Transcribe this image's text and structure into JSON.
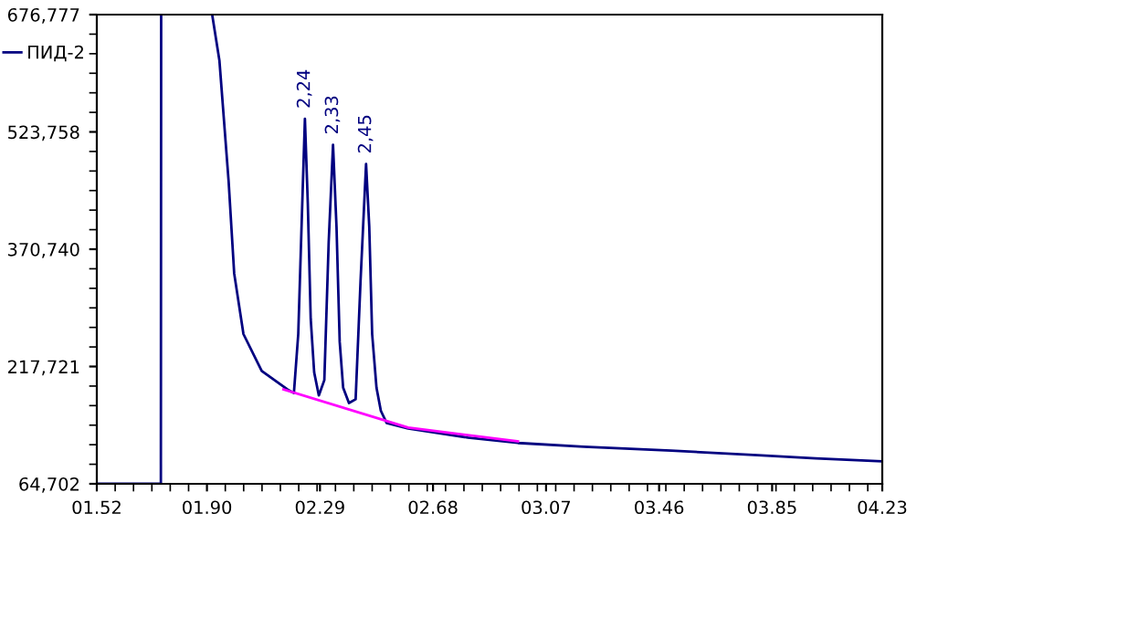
{
  "chart_data": {
    "type": "line",
    "series": [
      {
        "name": "ПИД-2",
        "color": "#000080",
        "x": [
          1.52,
          1.741,
          1.742,
          1.83,
          1.918,
          1.943,
          1.975,
          1.994,
          2.026,
          2.089,
          2.177,
          2.2,
          2.215,
          2.228,
          2.238,
          2.248,
          2.258,
          2.27,
          2.286,
          2.305,
          2.32,
          2.335,
          2.347,
          2.358,
          2.37,
          2.39,
          2.413,
          2.43,
          2.449,
          2.46,
          2.47,
          2.485,
          2.5,
          2.52,
          2.594,
          2.8,
          2.973,
          3.2,
          3.502,
          3.8,
          4.0,
          4.23
        ],
        "values": [
          64702,
          64702,
          676777,
          null,
          676777,
          617000,
          458000,
          339000,
          260000,
          212000,
          188000,
          183000,
          260000,
          420000,
          541000,
          430000,
          280000,
          210000,
          180000,
          200000,
          380000,
          507000,
          400000,
          250000,
          190000,
          170000,
          175000,
          330000,
          482000,
          400000,
          260000,
          190000,
          160000,
          144000,
          137000,
          125000,
          118000,
          113000,
          108000,
          102000,
          98000,
          94000
        ]
      },
      {
        "color": "#ff00ff",
        "x": [
          2.164,
          2.594,
          2.973
        ],
        "values": [
          188000,
          138000,
          120000
        ]
      }
    ],
    "xlim": [
      1.52,
      4.23
    ],
    "xticks": [
      {
        "value": 1.52,
        "label": "01.52"
      },
      {
        "value": 1.9,
        "label": "01.90"
      },
      {
        "value": 2.29,
        "label": "02.29"
      },
      {
        "value": 2.68,
        "label": "02.68"
      },
      {
        "value": 3.07,
        "label": "03.07"
      },
      {
        "value": 3.46,
        "label": "03.46"
      },
      {
        "value": 3.85,
        "label": "03.85"
      },
      {
        "value": 4.23,
        "label": "04.23"
      }
    ],
    "ylim": [
      64702,
      676777
    ],
    "yticks": [
      {
        "value": 64702,
        "label": "64,702"
      },
      {
        "value": 217721,
        "label": "217,721"
      },
      {
        "value": 370740,
        "label": "370,740"
      },
      {
        "value": 523758,
        "label": "523,758"
      },
      {
        "value": 676777,
        "label": "676,777"
      }
    ],
    "annotations": [
      {
        "text": "2,24",
        "x": 2.238,
        "y": 541000
      },
      {
        "text": "2,33",
        "x": 2.335,
        "y": 507000
      },
      {
        "text": "2,45",
        "x": 2.449,
        "y": 482000
      }
    ],
    "legend": "top left",
    "grid": false
  }
}
